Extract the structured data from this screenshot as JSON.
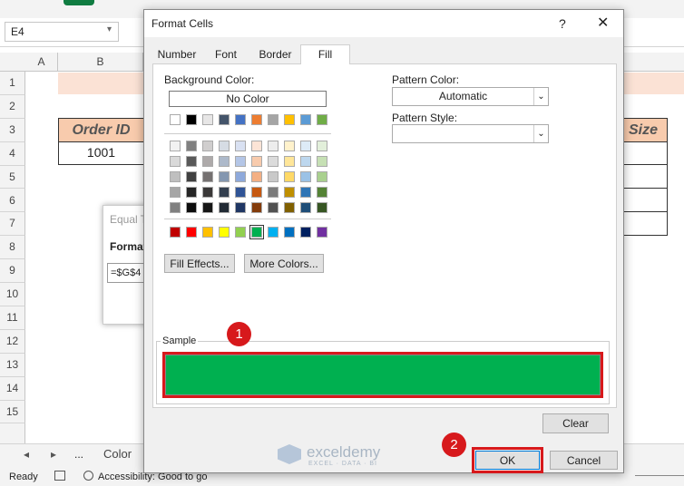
{
  "formula_bar": {
    "name_box": "E4"
  },
  "sheet": {
    "column_headers": [
      "A",
      "B"
    ],
    "row_headers": [
      "1",
      "2",
      "3",
      "4",
      "5",
      "6",
      "7",
      "8",
      "9",
      "10",
      "11",
      "12",
      "13",
      "14",
      "15"
    ],
    "header_cell": "Order ID",
    "value_cell": "1001",
    "right_header_cell": "Size"
  },
  "background_dialog": {
    "title": "Equal T",
    "label": "Format",
    "formula": "=$G$4"
  },
  "sheet_tabs": {
    "more": "...",
    "active": "Color"
  },
  "status_bar": {
    "mode": "Ready",
    "accessibility": "Accessibility: Good to go"
  },
  "dialog": {
    "title": "Format Cells",
    "help": "?",
    "tabs": [
      "Number",
      "Font",
      "Border",
      "Fill"
    ],
    "background_color_label": "Background Color:",
    "no_color": "No Color",
    "fill_effects": "Fill Effects...",
    "more_colors": "More Colors...",
    "pattern_color_label": "Pattern Color:",
    "pattern_color_value": "Automatic",
    "pattern_style_label": "Pattern Style:",
    "sample_label": "Sample",
    "clear": "Clear",
    "ok": "OK",
    "cancel": "Cancel"
  },
  "annotations": [
    "1",
    "2"
  ],
  "watermark": {
    "name": "exceldemy",
    "tagline": "EXCEL · DATA · BI"
  }
}
